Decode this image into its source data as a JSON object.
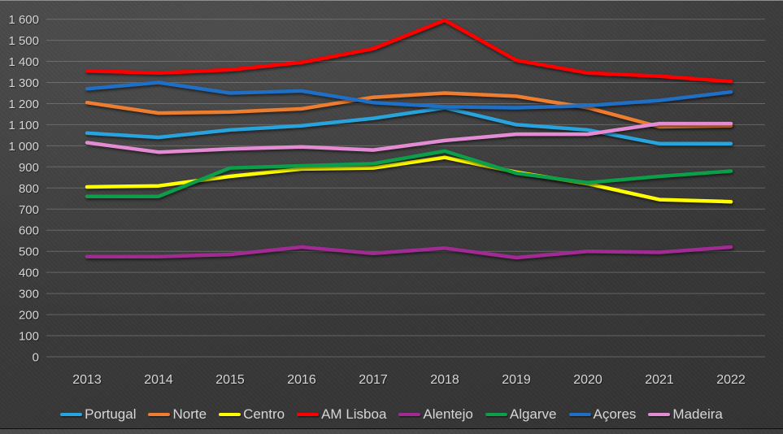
{
  "chart_data": {
    "type": "line",
    "title": "",
    "xlabel": "",
    "ylabel": "",
    "categories": [
      "2013",
      "2014",
      "2015",
      "2016",
      "2017",
      "2018",
      "2019",
      "2020",
      "2021",
      "2022"
    ],
    "series": [
      {
        "name": "Portugal",
        "color": "#29A3DC",
        "values": [
          1060,
          1040,
          1075,
          1095,
          1130,
          1180,
          1100,
          1075,
          1010,
          1010
        ]
      },
      {
        "name": "Norte",
        "color": "#ED7D31",
        "values": [
          1205,
          1155,
          1160,
          1175,
          1230,
          1250,
          1235,
          1180,
          1090,
          1095
        ]
      },
      {
        "name": "Centro",
        "color": "#FFFF00",
        "values": [
          805,
          810,
          855,
          890,
          895,
          945,
          875,
          820,
          745,
          735
        ]
      },
      {
        "name": "AM Lisboa",
        "color": "#FF0000",
        "values": [
          1355,
          1345,
          1360,
          1395,
          1460,
          1595,
          1405,
          1345,
          1330,
          1305
        ]
      },
      {
        "name": "Alentejo",
        "color": "#A02B93",
        "values": [
          475,
          475,
          485,
          520,
          490,
          515,
          470,
          500,
          495,
          520
        ]
      },
      {
        "name": "Algarve",
        "color": "#0C9E49",
        "values": [
          760,
          760,
          895,
          905,
          915,
          975,
          870,
          825,
          855,
          880
        ]
      },
      {
        "name": "Açores",
        "color": "#1F6FC5",
        "values": [
          1270,
          1300,
          1250,
          1260,
          1205,
          1185,
          1180,
          1190,
          1215,
          1255
        ]
      },
      {
        "name": "Madeira",
        "color": "#E38CD3",
        "values": [
          1015,
          970,
          985,
          995,
          980,
          1025,
          1055,
          1055,
          1105,
          1105
        ]
      }
    ],
    "ylim": [
      0,
      1600
    ],
    "ytick_step": 100,
    "y_tick_labels": [
      "0",
      "100",
      "200",
      "300",
      "400",
      "500",
      "600",
      "700",
      "800",
      "900",
      "1 000",
      "1 100",
      "1 200",
      "1 300",
      "1 400",
      "1 500",
      "1 600"
    ],
    "grid": "horizontal",
    "legend_position": "bottom",
    "colors": {
      "background": "#3B3B3B",
      "gridline": "#909090",
      "text": "#D6D6D6"
    }
  }
}
